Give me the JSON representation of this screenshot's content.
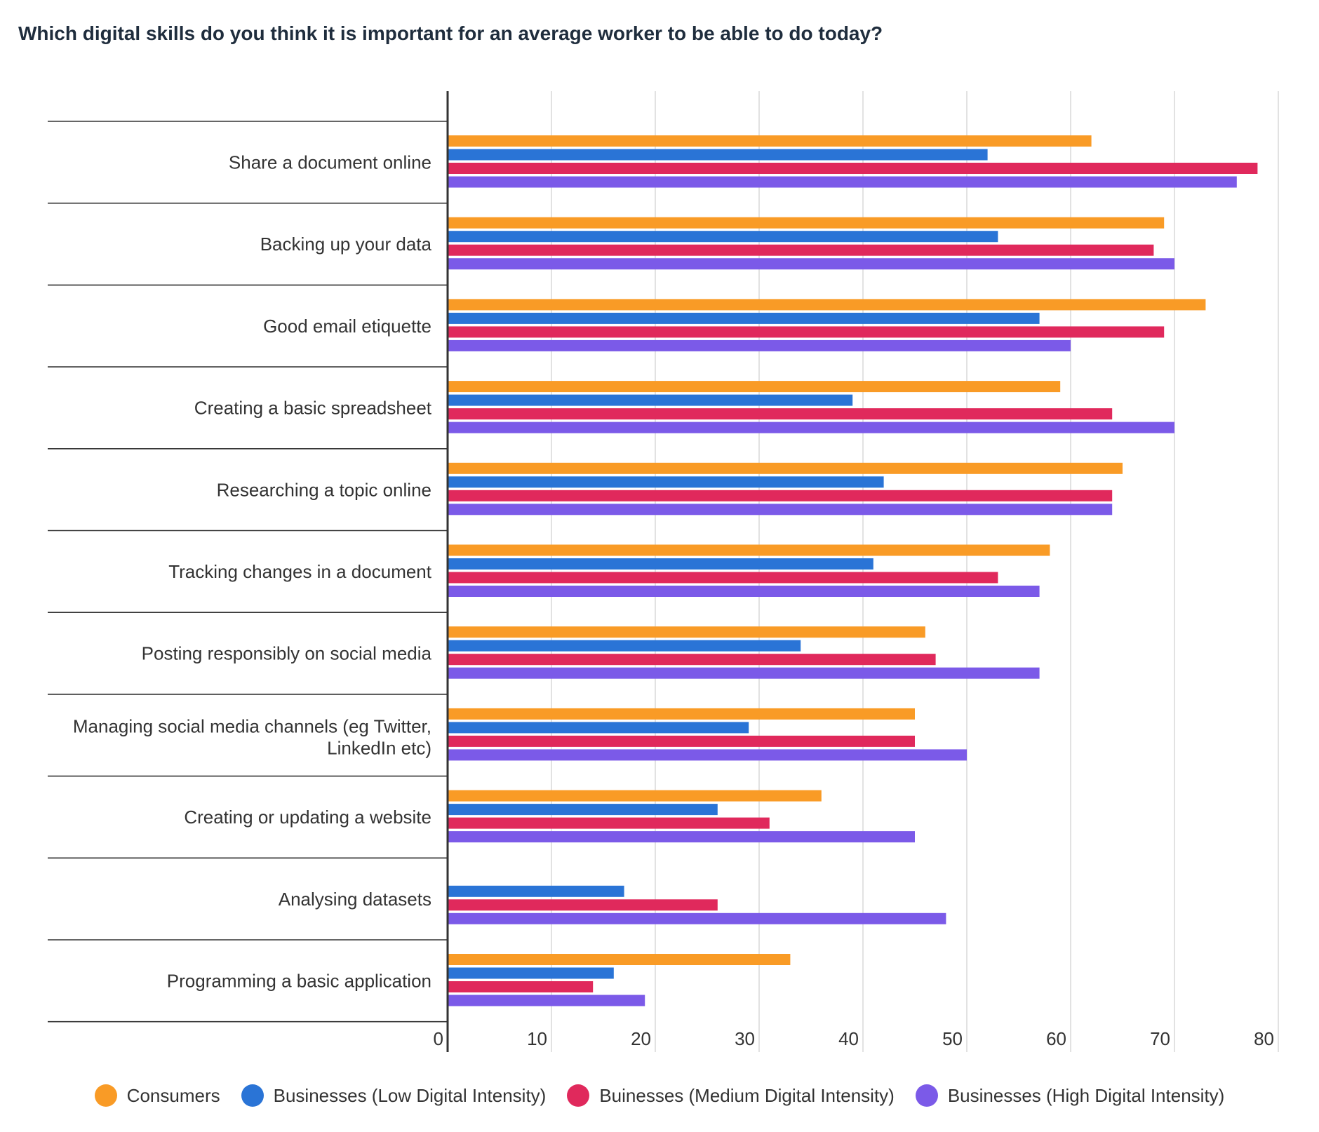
{
  "chart_data": {
    "type": "bar",
    "orientation": "horizontal",
    "title": "Which digital skills do you think it is important for an average worker to be able to do today?",
    "categories": [
      "Share a document online",
      "Backing up your data",
      "Good email etiquette",
      "Creating a basic spreadsheet",
      "Researching a topic online",
      "Tracking changes in a document",
      "Posting responsibly on social media",
      "Managing social media channels (eg Twitter, LinkedIn etc)",
      "Creating or updating a website",
      "Analysing datasets",
      "Programming a basic application"
    ],
    "series": [
      {
        "name": "Consumers",
        "color": "#f99b26",
        "values": [
          62,
          69,
          73,
          59,
          65,
          58,
          46,
          45,
          36,
          null,
          33
        ]
      },
      {
        "name": "Businesses (Low Digital Intensity)",
        "color": "#2a74d6",
        "values": [
          52,
          53,
          57,
          39,
          42,
          41,
          34,
          29,
          26,
          17,
          16
        ]
      },
      {
        "name": "Buinesses (Medium Digital Intensity)",
        "color": "#e0295c",
        "values": [
          78,
          68,
          69,
          64,
          64,
          53,
          47,
          45,
          31,
          26,
          14
        ]
      },
      {
        "name": "Businesses (High Digital Intensity)",
        "color": "#7b5ae8",
        "values": [
          76,
          70,
          60,
          70,
          64,
          57,
          57,
          50,
          45,
          48,
          19
        ]
      }
    ],
    "xlim": [
      0,
      80
    ],
    "xticks": [
      "0",
      "10",
      "20",
      "30",
      "40",
      "50",
      "60",
      "70",
      "80"
    ],
    "grid": true,
    "legend_position": "bottom"
  }
}
